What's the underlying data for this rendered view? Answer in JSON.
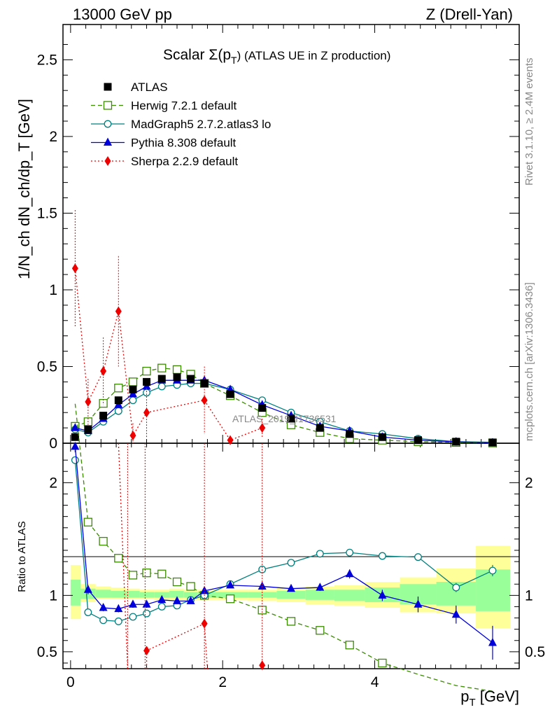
{
  "header": {
    "left": "13000 GeV pp",
    "right": "Z (Drell-Yan)"
  },
  "side_labels": {
    "rivet": "Rivet 3.1.10, ≥ 2.4M events",
    "mcplots": "mcplots.cern.ch [arXiv:1306.3436]"
  },
  "chart_data": {
    "type": "scatter",
    "title_main": "Scalar Σ(p",
    "title_sub": "T",
    "title_rest": ") (ATLAS UE in Z production)",
    "watermark": "ATLAS_2019_I1736531",
    "xlabel": "p",
    "xlabel_sub": "T",
    "xlabel_unit": " [GeV]",
    "ylabel": "1/N_ch dN_ch/dp_T [GeV]",
    "ratio_ylabel": "Ratio to ATLAS",
    "xlim": [
      -0.1,
      5.9
    ],
    "ylim": [
      0,
      2.73
    ],
    "ratio_ylim": [
      0.35,
      2.35
    ],
    "x_ticks": [
      "0",
      "2",
      "4"
    ],
    "y_ticks": [
      "0",
      "0.5",
      "1",
      "1.5",
      "2",
      "2.5"
    ],
    "ratio_y_ticks": [
      "0.5",
      "1",
      "2"
    ],
    "x": [
      0.06,
      0.23,
      0.43,
      0.63,
      0.82,
      1.0,
      1.2,
      1.4,
      1.58,
      1.76,
      2.1,
      2.52,
      2.9,
      3.28,
      3.67,
      4.1,
      4.57,
      5.07,
      5.55
    ],
    "bin_edges": [
      0.0,
      0.13,
      0.33,
      0.53,
      0.73,
      0.91,
      1.1,
      1.3,
      1.49,
      1.67,
      1.85,
      2.33,
      2.71,
      3.09,
      3.47,
      3.87,
      4.33,
      4.81,
      5.33,
      5.78
    ],
    "band_yellow": [
      [
        0.79,
        1.27
      ],
      [
        0.94,
        1.1
      ],
      [
        0.97,
        1.08
      ],
      [
        0.97,
        1.07
      ],
      [
        0.97,
        1.06
      ],
      [
        0.97,
        1.05
      ],
      [
        0.96,
        1.05
      ],
      [
        0.96,
        1.06
      ],
      [
        0.96,
        1.05
      ],
      [
        0.96,
        1.05
      ],
      [
        0.96,
        1.05
      ],
      [
        0.95,
        1.05
      ],
      [
        0.94,
        1.07
      ],
      [
        0.92,
        1.08
      ],
      [
        0.91,
        1.09
      ],
      [
        0.89,
        1.12
      ],
      [
        0.85,
        1.16
      ],
      [
        0.84,
        1.24
      ],
      [
        0.71,
        1.44
      ]
    ],
    "band_green": [
      [
        0.91,
        1.14
      ],
      [
        0.97,
        1.06
      ],
      [
        0.98,
        1.05
      ],
      [
        0.98,
        1.04
      ],
      [
        0.98,
        1.04
      ],
      [
        0.98,
        1.03
      ],
      [
        0.98,
        1.03
      ],
      [
        0.98,
        1.04
      ],
      [
        0.98,
        1.03
      ],
      [
        0.98,
        1.03
      ],
      [
        0.98,
        1.03
      ],
      [
        0.98,
        1.03
      ],
      [
        0.97,
        1.04
      ],
      [
        0.96,
        1.05
      ],
      [
        0.95,
        1.05
      ],
      [
        0.94,
        1.07
      ],
      [
        0.92,
        1.1
      ],
      [
        0.91,
        1.12
      ],
      [
        0.86,
        1.23
      ]
    ],
    "series": [
      {
        "name": "ATLAS",
        "color": "#000000",
        "marker": "filled-square",
        "line": "none",
        "values": [
          0.04,
          0.09,
          0.18,
          0.28,
          0.35,
          0.4,
          0.42,
          0.43,
          0.42,
          0.39,
          0.32,
          0.23,
          0.16,
          0.1,
          0.06,
          0.04,
          0.02,
          0.01,
          0.005
        ]
      },
      {
        "name": "Herwig 7.2.1 default",
        "color": "#3a8b00",
        "marker": "open-square",
        "line": "dashed",
        "values": [
          0.11,
          0.14,
          0.26,
          0.36,
          0.4,
          0.47,
          0.49,
          0.48,
          0.45,
          0.39,
          0.31,
          0.2,
          0.12,
          0.07,
          0.03,
          0.02,
          0.01,
          0.005,
          0.002
        ],
        "ratio": [
          2.7,
          1.65,
          1.48,
          1.33,
          1.18,
          1.2,
          1.19,
          1.12,
          1.08,
          1.0,
          0.97,
          0.87,
          0.77,
          0.69,
          0.56,
          0.4,
          0.3,
          0.2,
          0.15
        ],
        "ratio_err": [
          0,
          0.03,
          0.02,
          0.02,
          0.02,
          0.02,
          0.02,
          0.02,
          0.02,
          0.02,
          0.01,
          0.01,
          0.01,
          0.02,
          0.03,
          0,
          0,
          0,
          0
        ]
      },
      {
        "name": "MadGraph5 2.7.2.atlas3 lo",
        "color": "#007f7f",
        "marker": "open-circle",
        "line": "solid",
        "values": [
          0.09,
          0.07,
          0.14,
          0.21,
          0.28,
          0.33,
          0.37,
          0.38,
          0.39,
          0.39,
          0.35,
          0.28,
          0.2,
          0.14,
          0.08,
          0.06,
          0.03,
          0.01,
          0.006
        ],
        "ratio": [
          2.2,
          0.85,
          0.78,
          0.77,
          0.81,
          0.84,
          0.9,
          0.91,
          0.96,
          1.0,
          1.1,
          1.23,
          1.29,
          1.37,
          1.38,
          1.35,
          1.34,
          1.07,
          1.22
        ],
        "ratio_err": [
          0,
          0.01,
          0.01,
          0.01,
          0.01,
          0.01,
          0.01,
          0.01,
          0.01,
          0.01,
          0.01,
          0.01,
          0.01,
          0.01,
          0.01,
          0.01,
          0.02,
          0.04,
          0.05
        ]
      },
      {
        "name": "Pythia 8.308 default",
        "color": "#0000dd",
        "marker": "filled-triangle",
        "line": "solid",
        "values": [
          0.1,
          0.08,
          0.16,
          0.25,
          0.32,
          0.37,
          0.41,
          0.41,
          0.41,
          0.41,
          0.35,
          0.25,
          0.18,
          0.11,
          0.08,
          0.04,
          0.02,
          0.009,
          0.003
        ],
        "ratio": [
          2.32,
          1.05,
          0.89,
          0.88,
          0.92,
          0.92,
          0.96,
          0.95,
          0.95,
          1.04,
          1.09,
          1.08,
          1.06,
          1.07,
          1.19,
          1.0,
          0.92,
          0.83,
          0.58
        ],
        "ratio_err": [
          0.05,
          0.04,
          0.03,
          0.03,
          0.03,
          0.03,
          0.02,
          0.02,
          0.02,
          0.02,
          0.02,
          0.02,
          0.02,
          0.03,
          0.04,
          0.05,
          0.07,
          0.08,
          0.15
        ]
      },
      {
        "name": "Sherpa 2.2.9 default",
        "color": "#ee0000",
        "marker": "filled-diamond",
        "line": "dotted",
        "values": [
          1.14,
          0.27,
          0.47,
          0.86,
          0.05,
          0.2,
          null,
          null,
          null,
          0.28,
          0.02,
          0.1,
          null,
          null,
          null,
          null,
          null,
          null,
          null
        ],
        "errors": [
          0.38,
          0.15,
          0.22,
          0.36,
          0.08,
          0.16,
          null,
          null,
          null,
          0.22,
          0.03,
          0.06,
          null,
          null,
          null,
          null,
          null,
          null,
          null
        ],
        "ratio": [
          null,
          null,
          null,
          null,
          null,
          0.51,
          null,
          null,
          null,
          0.75,
          null,
          0.38,
          null,
          null,
          null,
          null,
          null,
          null,
          null
        ]
      }
    ]
  }
}
